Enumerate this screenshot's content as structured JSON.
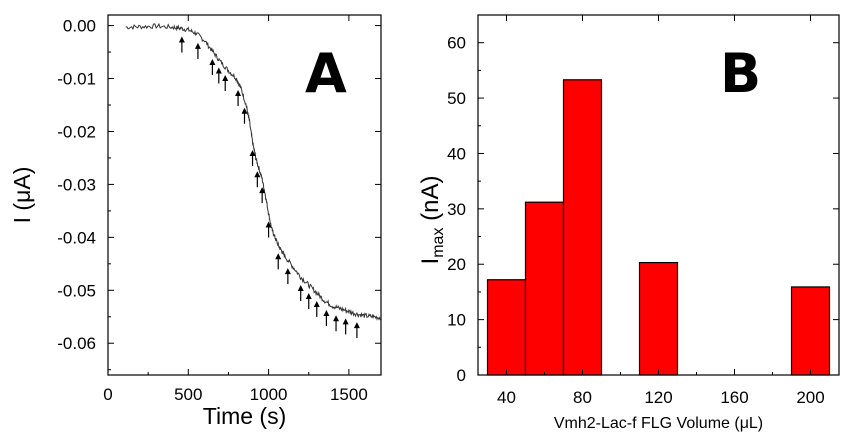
{
  "chart_data": [
    {
      "panel": "A",
      "type": "line",
      "xlabel": "Time (s)",
      "ylabel": "I (μA)",
      "xlim": [
        0,
        1700
      ],
      "ylim": [
        -0.066,
        0.002
      ],
      "xticks": [
        "0",
        "500",
        "1000",
        "1500"
      ],
      "yticks": [
        "0.00",
        "-0.01",
        "-0.02",
        "-0.03",
        "-0.04",
        "-0.05",
        "-0.06"
      ],
      "x": [
        110,
        200,
        300,
        400,
        450,
        500,
        550,
        600,
        650,
        700,
        750,
        800,
        830,
        860,
        880,
        900,
        920,
        940,
        960,
        980,
        1000,
        1020,
        1040,
        1060,
        1080,
        1100,
        1150,
        1200,
        1250,
        1300,
        1350,
        1400,
        1450,
        1500,
        1550,
        1600,
        1650,
        1700
      ],
      "y": [
        -0.0003,
        -0.0002,
        -0.0001,
        -0.0003,
        -0.0005,
        -0.0008,
        -0.0015,
        -0.0028,
        -0.0048,
        -0.0068,
        -0.0085,
        -0.01,
        -0.012,
        -0.015,
        -0.018,
        -0.022,
        -0.025,
        -0.027,
        -0.029,
        -0.032,
        -0.0355,
        -0.0385,
        -0.04,
        -0.0415,
        -0.0425,
        -0.0435,
        -0.0455,
        -0.0475,
        -0.049,
        -0.0505,
        -0.052,
        -0.053,
        -0.0535,
        -0.054,
        -0.0545,
        -0.0548,
        -0.055,
        -0.0552
      ],
      "arrows_x": [
        460,
        560,
        650,
        690,
        730,
        810,
        850,
        900,
        930,
        960,
        1000,
        1060,
        1120,
        1200,
        1250,
        1300,
        1360,
        1420,
        1480,
        1550
      ],
      "panel_label": "A",
      "grid": false
    },
    {
      "panel": "B",
      "type": "bar",
      "xlabel": "Vmh2-Lac-f FLG Volume (μL)",
      "ylabel_main": "I",
      "ylabel_sub": "max",
      "ylabel_unit": " (nA)",
      "xlim": [
        25,
        215
      ],
      "ylim": [
        0,
        65
      ],
      "xticks": [
        "40",
        "80",
        "120",
        "160",
        "200"
      ],
      "yticks": [
        "0",
        "10",
        "20",
        "30",
        "40",
        "50",
        "60"
      ],
      "bar_width": 20,
      "categories": [
        40,
        60,
        80,
        120,
        200
      ],
      "values": [
        17.2,
        31.2,
        53.3,
        20.3,
        15.9
      ],
      "bar_color": "#ff0000",
      "panel_label": "B",
      "grid": false
    }
  ]
}
